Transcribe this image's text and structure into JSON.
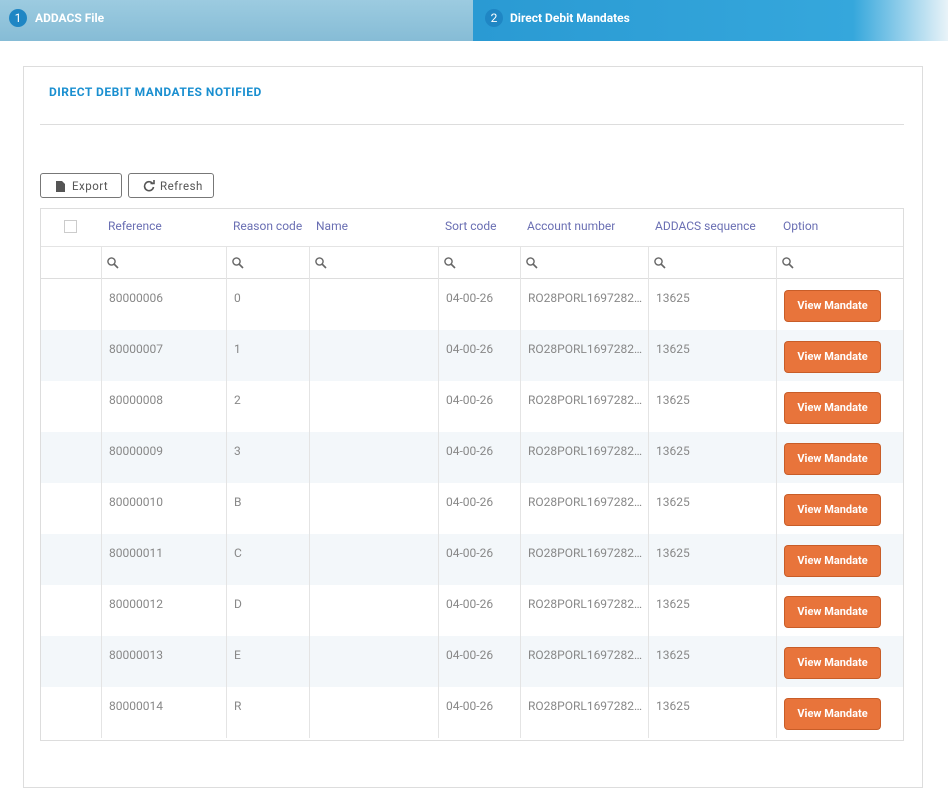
{
  "steps": [
    {
      "number": "1",
      "label": "ADDACS File"
    },
    {
      "number": "2",
      "label": "Direct Debit Mandates"
    }
  ],
  "panel": {
    "title": "DIRECT DEBIT MANDATES NOTIFIED"
  },
  "toolbar": {
    "export": "Export",
    "refresh": "Refresh"
  },
  "table": {
    "columns": [
      "Reference",
      "Reason code",
      "Name",
      "Sort code",
      "Account number",
      "ADDACS sequence",
      "Option"
    ],
    "rows": [
      {
        "reference": "80000006",
        "reason_code": "0",
        "sort_code": "04-00-26",
        "account_number": "RO28PORL1697282…",
        "sequence": "13625",
        "option": "View Mandate"
      },
      {
        "reference": "80000007",
        "reason_code": "1",
        "sort_code": "04-00-26",
        "account_number": "RO28PORL1697282…",
        "sequence": "13625",
        "option": "View Mandate"
      },
      {
        "reference": "80000008",
        "reason_code": "2",
        "sort_code": "04-00-26",
        "account_number": "RO28PORL1697282…",
        "sequence": "13625",
        "option": "View Mandate"
      },
      {
        "reference": "80000009",
        "reason_code": "3",
        "sort_code": "04-00-26",
        "account_number": "RO28PORL1697282…",
        "sequence": "13625",
        "option": "View Mandate"
      },
      {
        "reference": "80000010",
        "reason_code": "B",
        "sort_code": "04-00-26",
        "account_number": "RO28PORL1697282…",
        "sequence": "13625",
        "option": "View Mandate"
      },
      {
        "reference": "80000011",
        "reason_code": "C",
        "sort_code": "04-00-26",
        "account_number": "RO28PORL1697282…",
        "sequence": "13625",
        "option": "View Mandate"
      },
      {
        "reference": "80000012",
        "reason_code": "D",
        "sort_code": "04-00-26",
        "account_number": "RO28PORL1697282…",
        "sequence": "13625",
        "option": "View Mandate"
      },
      {
        "reference": "80000013",
        "reason_code": "E",
        "sort_code": "04-00-26",
        "account_number": "RO28PORL1697282…",
        "sequence": "13625",
        "option": "View Mandate"
      },
      {
        "reference": "80000014",
        "reason_code": "R",
        "sort_code": "04-00-26",
        "account_number": "RO28PORL1697282…",
        "sequence": "13625",
        "option": "View Mandate"
      }
    ]
  }
}
